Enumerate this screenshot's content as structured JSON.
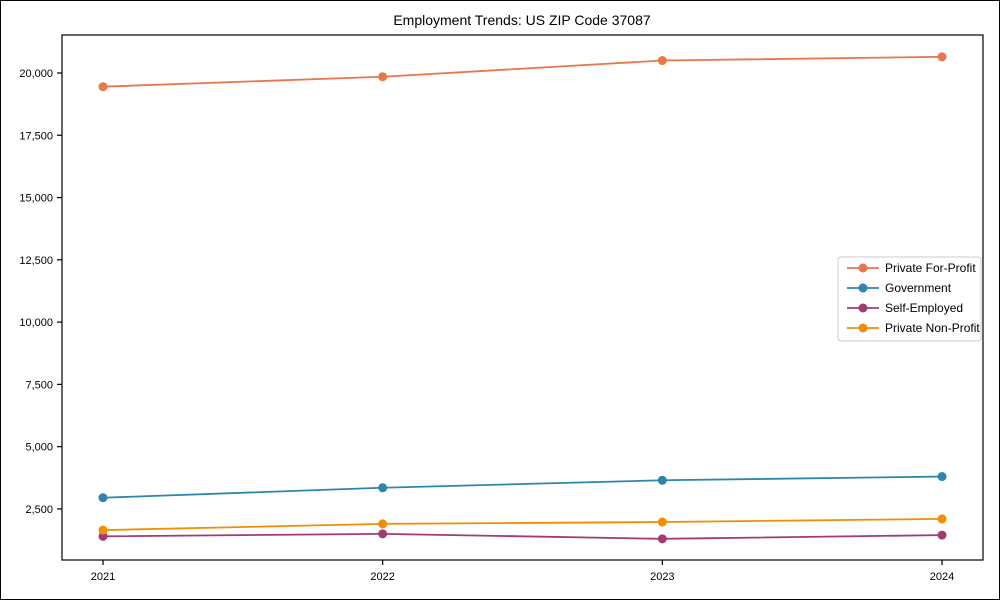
{
  "figure": {
    "background": "#ffffff",
    "frame_color": "#000000"
  },
  "chart_data": {
    "type": "line",
    "title": "Employment Trends: US ZIP Code 37087",
    "categories": [
      "2021",
      "2022",
      "2023",
      "2024"
    ],
    "series": [
      {
        "name": "Private For-Profit",
        "color": "#E8774C",
        "values": [
          19450,
          19850,
          20500,
          20650
        ]
      },
      {
        "name": "Government",
        "color": "#2E86AB",
        "values": [
          2950,
          3350,
          3650,
          3800
        ]
      },
      {
        "name": "Self-Employed",
        "color": "#A23B72",
        "values": [
          1400,
          1500,
          1300,
          1450
        ]
      },
      {
        "name": "Private Non-Profit",
        "color": "#F18F01",
        "values": [
          1650,
          1900,
          1975,
          2100
        ]
      }
    ],
    "xlabel": "",
    "ylabel": "",
    "ylim": [
      450,
      21525
    ],
    "yticks": [
      2500,
      5000,
      7500,
      10000,
      12500,
      15000,
      17500,
      20000
    ],
    "grid": false,
    "legend_position": "right-center",
    "legend_border_color": "#cccccc",
    "marker": "circle",
    "axis_color": "#000000"
  }
}
